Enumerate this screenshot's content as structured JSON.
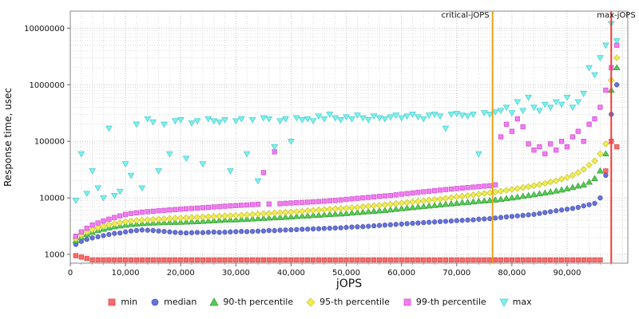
{
  "chart_data": {
    "type": "scatter",
    "title": "",
    "xlabel": "jOPS",
    "ylabel": "Response time, usec",
    "yscale": "log",
    "xlim": [
      0,
      101000
    ],
    "ylim": [
      700,
      20000000
    ],
    "grid": true,
    "legend_position": "bottom",
    "x_ticks": [
      0,
      10000,
      20000,
      30000,
      40000,
      50000,
      60000,
      70000,
      80000,
      90000
    ],
    "x_tick_labels": [
      "0",
      "10,000",
      "20,000",
      "30,000",
      "40,000",
      "50,000",
      "60,000",
      "70,000",
      "80,000",
      "90,000"
    ],
    "y_ticks": [
      1000,
      10000,
      100000,
      1000000,
      10000000
    ],
    "y_tick_labels": [
      "1000",
      "10000",
      "100000",
      "1000000",
      "10000000"
    ],
    "annotations": [
      {
        "type": "vline",
        "label": "critical-jOPS",
        "x": 76500,
        "color": "#e2a21b",
        "label_anchor": "end",
        "label_dx": -4
      },
      {
        "type": "vline",
        "label": "max-jOPS",
        "x": 98000,
        "color": "#f03b3b",
        "label_anchor": "start",
        "label_dx": -18
      }
    ],
    "x": [
      1000,
      2000,
      3000,
      4000,
      5000,
      6000,
      7000,
      8000,
      9000,
      10000,
      11000,
      12000,
      13000,
      14000,
      15000,
      16000,
      17000,
      18000,
      19000,
      20000,
      21000,
      22000,
      23000,
      24000,
      25000,
      26000,
      27000,
      28000,
      29000,
      30000,
      31000,
      32000,
      33000,
      34000,
      35000,
      36000,
      37000,
      38000,
      39000,
      40000,
      41000,
      42000,
      43000,
      44000,
      45000,
      46000,
      47000,
      48000,
      49000,
      50000,
      51000,
      52000,
      53000,
      54000,
      55000,
      56000,
      57000,
      58000,
      59000,
      60000,
      61000,
      62000,
      63000,
      64000,
      65000,
      66000,
      67000,
      68000,
      69000,
      70000,
      71000,
      72000,
      73000,
      74000,
      75000,
      76000,
      77000,
      78000,
      79000,
      80000,
      81000,
      82000,
      83000,
      84000,
      85000,
      86000,
      87000,
      88000,
      89000,
      90000,
      91000,
      92000,
      93000,
      94000,
      95000,
      96000,
      97000,
      98000,
      99000
    ],
    "series": [
      {
        "name": "min",
        "marker": "square",
        "color": "#fb6a6a",
        "stroke": "#d94f4f",
        "values": [
          950,
          900,
          850,
          800,
          800,
          800,
          800,
          800,
          800,
          800,
          800,
          800,
          800,
          800,
          800,
          800,
          800,
          800,
          800,
          800,
          800,
          800,
          800,
          800,
          800,
          800,
          800,
          800,
          800,
          800,
          800,
          800,
          800,
          800,
          800,
          800,
          800,
          800,
          800,
          800,
          800,
          800,
          800,
          800,
          800,
          800,
          800,
          800,
          800,
          800,
          800,
          800,
          800,
          800,
          800,
          800,
          800,
          800,
          800,
          800,
          800,
          800,
          800,
          800,
          800,
          800,
          800,
          800,
          800,
          800,
          800,
          800,
          800,
          800,
          800,
          800,
          800,
          800,
          800,
          800,
          800,
          800,
          800,
          800,
          800,
          800,
          800,
          800,
          800,
          800,
          800,
          800,
          800,
          800,
          800,
          800,
          30000,
          100000,
          80000
        ]
      },
      {
        "name": "median",
        "marker": "circle",
        "color": "#6673d6",
        "stroke": "#4f58b8",
        "values": [
          1500,
          1700,
          1850,
          1950,
          2050,
          2150,
          2250,
          2350,
          2400,
          2500,
          2600,
          2650,
          2700,
          2680,
          2650,
          2600,
          2550,
          2500,
          2450,
          2420,
          2400,
          2420,
          2450,
          2430,
          2460,
          2480,
          2450,
          2470,
          2500,
          2520,
          2550,
          2530,
          2560,
          2580,
          2600,
          2650,
          2630,
          2680,
          2700,
          2720,
          2750,
          2780,
          2800,
          2830,
          2850,
          2880,
          2900,
          2930,
          2960,
          3000,
          3050,
          3080,
          3100,
          3150,
          3200,
          3250,
          3300,
          3350,
          3400,
          3450,
          3500,
          3550,
          3600,
          3650,
          3700,
          3750,
          3800,
          3850,
          3900,
          3950,
          4000,
          4050,
          4100,
          4200,
          4250,
          4300,
          4400,
          4500,
          4600,
          4700,
          4800,
          4900,
          5000,
          5100,
          5300,
          5500,
          5700,
          5900,
          6100,
          6300,
          6500,
          6800,
          7200,
          7600,
          8000,
          10000,
          25000,
          300000,
          1000000
        ]
      },
      {
        "name": "90-th percentile",
        "marker": "triangle-up",
        "color": "#55cb55",
        "stroke": "#3aa53a",
        "values": [
          1750,
          2000,
          2250,
          2450,
          2650,
          2800,
          2950,
          3100,
          3200,
          3300,
          3400,
          3450,
          3500,
          3550,
          3600,
          3620,
          3650,
          3680,
          3700,
          3720,
          3750,
          3780,
          3800,
          3850,
          3900,
          3950,
          4000,
          4050,
          4080,
          4100,
          4150,
          4200,
          4250,
          4300,
          4350,
          4400,
          4450,
          4500,
          4550,
          4600,
          4700,
          4750,
          4800,
          4900,
          4950,
          5000,
          5100,
          5150,
          5200,
          5300,
          5400,
          5500,
          5600,
          5700,
          5800,
          5900,
          6000,
          6150,
          6300,
          6450,
          6600,
          6750,
          6900,
          7050,
          7200,
          7350,
          7500,
          7700,
          7850,
          8000,
          8200,
          8350,
          8500,
          8700,
          8850,
          9000,
          9200,
          9400,
          9700,
          10000,
          10300,
          10700,
          11000,
          11400,
          11800,
          12200,
          12700,
          13200,
          13800,
          14500,
          15300,
          16200,
          17000,
          19000,
          22000,
          30000,
          60000,
          800000,
          2000000
        ]
      },
      {
        "name": "95-th percentile",
        "marker": "diamond",
        "color": "#efec55",
        "stroke": "#cbc73a",
        "values": [
          1900,
          2200,
          2500,
          2750,
          2950,
          3150,
          3350,
          3500,
          3650,
          3800,
          3900,
          3980,
          4050,
          4100,
          4150,
          4200,
          4250,
          4300,
          4350,
          4400,
          4450,
          4500,
          4550,
          4600,
          4650,
          4700,
          4750,
          4800,
          4850,
          4900,
          4950,
          5000,
          5100,
          5150,
          5250,
          5300,
          5400,
          5450,
          5550,
          5600,
          5700,
          5800,
          5900,
          6000,
          6100,
          6200,
          6300,
          6400,
          6500,
          6600,
          6700,
          6800,
          6950,
          7100,
          7250,
          7400,
          7550,
          7700,
          7900,
          8100,
          8300,
          8500,
          8700,
          8900,
          9100,
          9300,
          9500,
          9800,
          10100,
          10400,
          10700,
          11000,
          11300,
          11600,
          12000,
          12300,
          12700,
          13100,
          13600,
          14100,
          14600,
          15200,
          15800,
          16500,
          17200,
          18000,
          19000,
          20000,
          21500,
          23000,
          25000,
          28000,
          32000,
          38000,
          45000,
          60000,
          90000,
          1200000,
          3000000
        ]
      },
      {
        "name": "99-th percentile",
        "marker": "square",
        "color": "#f07df0",
        "stroke": "#d455d4",
        "values": [
          2100,
          2500,
          2900,
          3300,
          3600,
          3900,
          4200,
          4500,
          4800,
          5100,
          5300,
          5450,
          5600,
          5700,
          5800,
          5900,
          6000,
          6100,
          6200,
          6300,
          6400,
          6500,
          6600,
          6700,
          6800,
          6900,
          7000,
          7100,
          7200,
          7300,
          7400,
          7500,
          7600,
          7700,
          28000,
          7800,
          65000,
          7900,
          8000,
          8100,
          8200,
          8300,
          8400,
          8500,
          8600,
          8700,
          8900,
          9000,
          9200,
          9400,
          9600,
          9800,
          10000,
          10200,
          10400,
          10600,
          10800,
          11000,
          11300,
          11600,
          11900,
          12200,
          12500,
          12800,
          13100,
          13400,
          13700,
          14000,
          14300,
          14600,
          14900,
          15200,
          15500,
          15800,
          16100,
          16400,
          17000,
          120000,
          200000,
          150000,
          250000,
          180000,
          90000,
          70000,
          80000,
          60000,
          90000,
          70000,
          100000,
          80000,
          120000,
          150000,
          100000,
          200000,
          250000,
          400000,
          800000,
          2000000,
          5000000
        ]
      },
      {
        "name": "max",
        "marker": "triangle-down",
        "color": "#7df0f0",
        "stroke": "#4fd0d0",
        "values": [
          9000,
          60000,
          12000,
          30000,
          15000,
          10000,
          170000,
          11000,
          13000,
          40000,
          25000,
          200000,
          15000,
          250000,
          220000,
          30000,
          200000,
          60000,
          230000,
          240000,
          50000,
          210000,
          230000,
          40000,
          250000,
          230000,
          220000,
          240000,
          30000,
          230000,
          250000,
          60000,
          240000,
          20000,
          260000,
          250000,
          80000,
          230000,
          250000,
          100000,
          260000,
          240000,
          250000,
          230000,
          280000,
          250000,
          300000,
          260000,
          240000,
          270000,
          250000,
          290000,
          260000,
          240000,
          280000,
          260000,
          250000,
          270000,
          290000,
          260000,
          280000,
          300000,
          270000,
          250000,
          290000,
          300000,
          280000,
          170000,
          300000,
          310000,
          290000,
          280000,
          300000,
          60000,
          320000,
          300000,
          330000,
          350000,
          400000,
          320000,
          500000,
          350000,
          600000,
          400000,
          350000,
          450000,
          400000,
          500000,
          450000,
          600000,
          400000,
          500000,
          700000,
          2000000,
          1500000,
          3000000,
          5000000,
          12000000,
          6000000
        ]
      }
    ]
  }
}
